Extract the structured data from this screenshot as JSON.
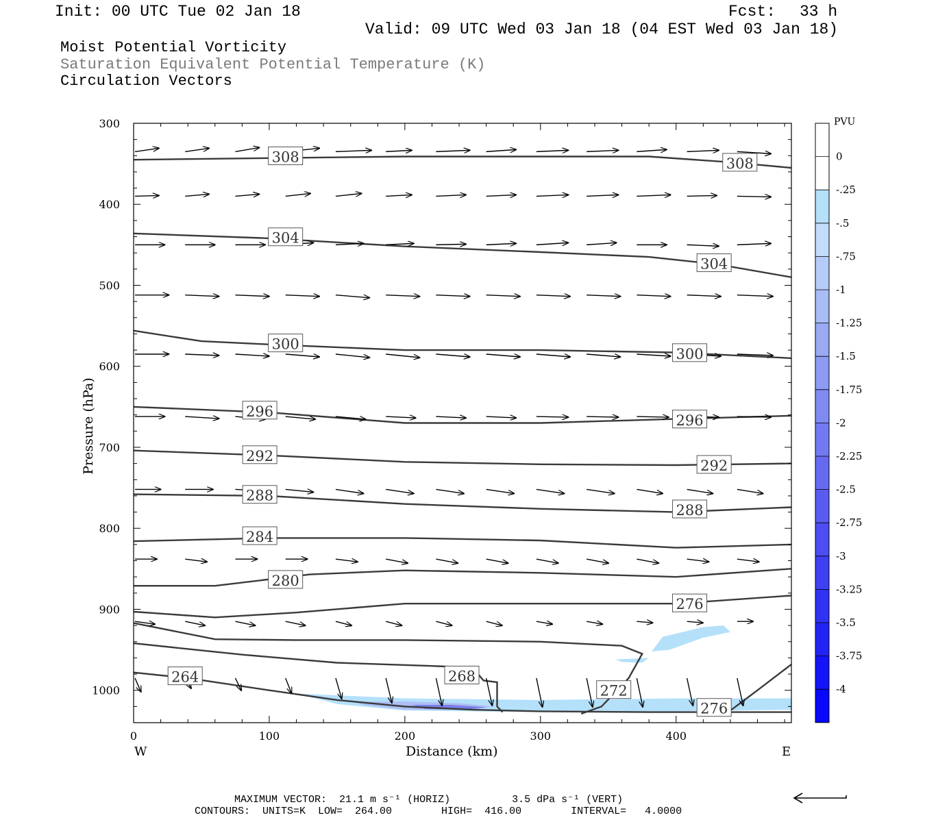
{
  "header": {
    "init": "Init: 00 UTC Tue 02 Jan 18",
    "fcst_label": "Fcst:",
    "fcst_value": "33 h",
    "valid": "Valid: 09 UTC Wed 03 Jan 18 (04 EST Wed 03 Jan 18)"
  },
  "fields": {
    "field1": "Moist Potential Vorticity",
    "field2": "Saturation Equivalent Potential Temperature (K)",
    "field3": "Circulation Vectors"
  },
  "colorbar": {
    "unit_label": "PVU",
    "tick_labels": [
      "0",
      "-.25",
      "-.5",
      "-.75",
      "-1",
      "-1.25",
      "-1.5",
      "-1.75",
      "-2",
      "-2.25",
      "-2.5",
      "-2.75",
      "-3",
      "-3.25",
      "-3.5",
      "-3.75",
      "-4"
    ],
    "colors": [
      "#ffffff",
      "#ffffff",
      "#b4e0fa",
      "#c2dcfa",
      "#b6ccf8",
      "#a8bcf6",
      "#9aabf4",
      "#8d9bf3",
      "#808bf2",
      "#737af1",
      "#666af0",
      "#5a5bf0",
      "#4d4df1",
      "#3f40f2",
      "#3032f4",
      "#2224f6",
      "#1415f8",
      "#0808fa"
    ]
  },
  "footer": {
    "max_vector": "MAXIMUM VECTOR:  21.1 m s⁻¹ (HORIZ)          3.5 dPa s⁻¹ (VERT)",
    "contours": "CONTOURS:  UNITS=K  LOW=  264.00        HIGH=  416.00        INTERVAL=   4.0000"
  },
  "chart_data": {
    "type": "contour",
    "ylabel": "Pressure (hPa)",
    "xlabel": "Distance (km)",
    "x_end_labels": [
      "W",
      "E"
    ],
    "xlim": [
      0,
      485
    ],
    "ylim": [
      1040,
      300
    ],
    "x_ticks": [
      0,
      100,
      200,
      300,
      400
    ],
    "y_ticks": [
      300,
      400,
      500,
      600,
      700,
      800,
      900,
      1000
    ],
    "contours": [
      {
        "label": "308",
        "points": [
          [
            0,
            345
          ],
          [
            100,
            343
          ],
          [
            200,
            341
          ],
          [
            300,
            341
          ],
          [
            380,
            341
          ],
          [
            440,
            348
          ],
          [
            485,
            355
          ]
        ],
        "label_at": [
          [
            112,
            341
          ],
          [
            447,
            349
          ]
        ]
      },
      {
        "label": "304",
        "points": [
          [
            0,
            436
          ],
          [
            100,
            442
          ],
          [
            200,
            452
          ],
          [
            300,
            459
          ],
          [
            380,
            465
          ],
          [
            430,
            474
          ],
          [
            485,
            490
          ]
        ],
        "label_at": [
          [
            112,
            441
          ],
          [
            428,
            473
          ]
        ]
      },
      {
        "label": "300",
        "points": [
          [
            0,
            556
          ],
          [
            50,
            569
          ],
          [
            100,
            573
          ],
          [
            200,
            580
          ],
          [
            300,
            580
          ],
          [
            400,
            583
          ],
          [
            485,
            590
          ]
        ],
        "label_at": [
          [
            112,
            572
          ],
          [
            410,
            584
          ]
        ]
      },
      {
        "label": "296",
        "points": [
          [
            0,
            650
          ],
          [
            100,
            657
          ],
          [
            200,
            670
          ],
          [
            300,
            670
          ],
          [
            400,
            665
          ],
          [
            485,
            661
          ]
        ],
        "label_at": [
          [
            93,
            655
          ],
          [
            410,
            666
          ]
        ]
      },
      {
        "label": "292",
        "points": [
          [
            0,
            704
          ],
          [
            100,
            710
          ],
          [
            200,
            718
          ],
          [
            300,
            721
          ],
          [
            400,
            722
          ],
          [
            485,
            720
          ]
        ],
        "label_at": [
          [
            93,
            710
          ],
          [
            428,
            722
          ]
        ]
      },
      {
        "label": "288",
        "points": [
          [
            0,
            758
          ],
          [
            100,
            760
          ],
          [
            200,
            770
          ],
          [
            300,
            776
          ],
          [
            400,
            780
          ],
          [
            485,
            774
          ]
        ],
        "label_at": [
          [
            93,
            759
          ],
          [
            410,
            777
          ]
        ]
      },
      {
        "label": "284",
        "points": [
          [
            0,
            816
          ],
          [
            100,
            812
          ],
          [
            200,
            812
          ],
          [
            300,
            815
          ],
          [
            400,
            824
          ],
          [
            485,
            820
          ]
        ],
        "label_at": [
          [
            93,
            810
          ]
        ]
      },
      {
        "label": "280",
        "points": [
          [
            0,
            871
          ],
          [
            60,
            871
          ],
          [
            130,
            857
          ],
          [
            200,
            852
          ],
          [
            300,
            855
          ],
          [
            400,
            860
          ],
          [
            485,
            850
          ]
        ],
        "label_at": [
          [
            112,
            864
          ]
        ]
      },
      {
        "label": "276",
        "points": [
          [
            0,
            903
          ],
          [
            60,
            910
          ],
          [
            120,
            904
          ],
          [
            200,
            893
          ],
          [
            300,
            893
          ],
          [
            400,
            893
          ],
          [
            485,
            883
          ]
        ],
        "label_at": [
          [
            410,
            893
          ]
        ]
      },
      {
        "label": "272",
        "points": [
          [
            0,
            917
          ],
          [
            60,
            937
          ],
          [
            120,
            938
          ],
          [
            200,
            938
          ],
          [
            300,
            940
          ],
          [
            360,
            945
          ],
          [
            375,
            955
          ],
          [
            365,
            985
          ],
          [
            345,
            1020
          ],
          [
            330,
            1029
          ]
        ],
        "label_at": [
          [
            354,
            1000
          ]
        ]
      },
      {
        "label": "268",
        "points": [
          [
            0,
            942
          ],
          [
            80,
            956
          ],
          [
            150,
            966
          ],
          [
            220,
            970
          ],
          [
            250,
            972
          ],
          [
            258,
            988
          ],
          [
            268,
            990
          ],
          [
            268,
            1020
          ],
          [
            272,
            1027
          ]
        ],
        "label_at": [
          [
            242,
            982
          ]
        ]
      },
      {
        "label": "264",
        "points": [
          [
            0,
            978
          ],
          [
            40,
            985
          ],
          [
            100,
            1000
          ],
          [
            150,
            1012
          ],
          [
            200,
            1020
          ],
          [
            250,
            1024
          ],
          [
            300,
            1026
          ],
          [
            380,
            1027
          ],
          [
            485,
            1027
          ]
        ],
        "label_at": [
          [
            38,
            983
          ]
        ]
      },
      {
        "label": "276",
        "points": [
          [
            440,
            1025
          ],
          [
            460,
            1000
          ],
          [
            485,
            968
          ]
        ],
        "label_at": [
          [
            428,
            1022
          ]
        ]
      }
    ],
    "pv_shading": [
      {
        "value": -0.5,
        "color": "#b4e0fa",
        "points": [
          [
            120,
            1004
          ],
          [
            200,
            1010
          ],
          [
            300,
            1012
          ],
          [
            400,
            1010
          ],
          [
            485,
            1010
          ],
          [
            485,
            1024
          ],
          [
            400,
            1026
          ],
          [
            300,
            1027
          ],
          [
            200,
            1025
          ],
          [
            150,
            1017
          ]
        ]
      },
      {
        "value": -0.5,
        "color": "#b4e0fa",
        "points": [
          [
            382,
            952
          ],
          [
            390,
            934
          ],
          [
            420,
            922
          ],
          [
            435,
            920
          ],
          [
            440,
            928
          ],
          [
            420,
            935
          ],
          [
            395,
            950
          ]
        ]
      },
      {
        "value": -0.5,
        "color": "#b4e0fa",
        "points": [
          [
            355,
            962
          ],
          [
            380,
            960
          ],
          [
            375,
            966
          ],
          [
            360,
            965
          ]
        ]
      },
      {
        "value": -1.0,
        "color": "#aebdf4",
        "points": [
          [
            160,
            1014
          ],
          [
            200,
            1014
          ],
          [
            240,
            1016
          ],
          [
            265,
            1020
          ],
          [
            250,
            1024
          ],
          [
            200,
            1024
          ],
          [
            170,
            1018
          ]
        ]
      },
      {
        "value": -1.75,
        "color": "#7a80ea",
        "points": [
          [
            205,
            1018
          ],
          [
            235,
            1018
          ],
          [
            260,
            1021
          ],
          [
            245,
            1024
          ],
          [
            215,
            1023
          ]
        ]
      }
    ],
    "vectors": [
      {
        "row": 335,
        "x": [
          0,
          37,
          74,
          111,
          148,
          185,
          222,
          259,
          296,
          333,
          370,
          407,
          444
        ],
        "dx": [
          24,
          24,
          24,
          34,
          36,
          26,
          34,
          30,
          32,
          32,
          30,
          32,
          34
        ],
        "dp": [
          -5,
          -5,
          -6,
          -5,
          -2,
          -2,
          -2,
          -3,
          -2,
          -2,
          -3,
          -2,
          3
        ]
      },
      {
        "row": 390,
        "x": [
          0,
          37,
          74,
          111,
          148,
          185,
          222,
          259,
          296,
          333,
          370,
          407,
          444
        ],
        "dx": [
          24,
          24,
          24,
          25,
          26,
          26,
          30,
          30,
          32,
          32,
          34,
          30,
          34
        ],
        "dp": [
          -1,
          -3,
          -3,
          -4,
          -4,
          -2,
          -2,
          -2,
          -2,
          -2,
          -2,
          -1,
          1
        ]
      },
      {
        "row": 450,
        "x": [
          0,
          37,
          74,
          111,
          148,
          185,
          222,
          259,
          296,
          333,
          370,
          407,
          444
        ],
        "dx": [
          30,
          30,
          30,
          28,
          28,
          28,
          30,
          30,
          32,
          30,
          30,
          32,
          34
        ],
        "dp": [
          0,
          0,
          0,
          -3,
          -2,
          -2,
          -1,
          -2,
          -3,
          -3,
          0,
          2,
          -2
        ]
      },
      {
        "row": 512,
        "x": [
          0,
          37,
          74,
          111,
          148,
          185,
          222,
          259,
          296,
          333,
          370,
          407,
          444
        ],
        "dx": [
          34,
          34,
          34,
          34,
          34,
          34,
          34,
          34,
          34,
          34,
          34,
          34,
          36
        ],
        "dp": [
          0,
          2,
          2,
          2,
          4,
          2,
          2,
          2,
          2,
          2,
          2,
          2,
          2
        ]
      },
      {
        "row": 585,
        "x": [
          0,
          37,
          74,
          111,
          148,
          185,
          222,
          259,
          296,
          333,
          370,
          407,
          444
        ],
        "dx": [
          34,
          34,
          34,
          34,
          34,
          34,
          34,
          34,
          34,
          34,
          34,
          34,
          36
        ],
        "dp": [
          0,
          2,
          3,
          4,
          5,
          5,
          4,
          4,
          4,
          4,
          3,
          3,
          2
        ]
      },
      {
        "row": 662,
        "x": [
          0,
          37,
          74,
          111,
          148,
          185,
          222,
          259,
          296,
          333,
          370,
          407,
          444
        ],
        "dx": [
          30,
          34,
          30,
          30,
          30,
          30,
          30,
          30,
          32,
          32,
          32,
          32,
          34
        ],
        "dp": [
          0,
          3,
          4,
          4,
          4,
          2,
          2,
          2,
          1,
          1,
          1,
          1,
          1
        ]
      },
      {
        "row": 752,
        "x": [
          0,
          37,
          74,
          111,
          148,
          185,
          222,
          259,
          296,
          333,
          370,
          407,
          444
        ],
        "dx": [
          26,
          28,
          28,
          28,
          28,
          28,
          28,
          28,
          28,
          28,
          26,
          26,
          26
        ],
        "dp": [
          0,
          0,
          2,
          4,
          6,
          6,
          6,
          6,
          6,
          6,
          6,
          6,
          6
        ]
      },
      {
        "row": 838,
        "x": [
          0,
          37,
          74,
          111,
          148,
          185,
          222,
          259,
          296,
          333,
          370,
          407,
          444
        ],
        "dx": [
          22,
          22,
          22,
          22,
          22,
          22,
          22,
          22,
          22,
          22,
          22,
          22,
          22
        ],
        "dp": [
          0,
          4,
          0,
          0,
          4,
          6,
          6,
          6,
          6,
          6,
          6,
          4,
          4
        ]
      },
      {
        "row": 915,
        "x": [
          0,
          37,
          74,
          111,
          148,
          185,
          222,
          259,
          296,
          333,
          370,
          407,
          444
        ],
        "dx": [
          20,
          20,
          20,
          20,
          16,
          16,
          16,
          16,
          16,
          16,
          16,
          16,
          16
        ],
        "dp": [
          4,
          6,
          6,
          6,
          6,
          6,
          6,
          6,
          4,
          4,
          2,
          2,
          0
        ]
      },
      {
        "row": 985,
        "x": [
          0,
          37,
          74,
          111,
          148,
          185,
          222,
          259,
          296,
          333,
          370,
          407,
          444
        ],
        "dx": [
          6,
          6,
          6,
          6,
          6,
          6,
          6,
          6,
          6,
          6,
          6,
          6,
          6
        ],
        "dp": [
          20,
          15,
          18,
          22,
          30,
          36,
          40,
          40,
          42,
          42,
          42,
          40,
          40
        ]
      }
    ]
  }
}
